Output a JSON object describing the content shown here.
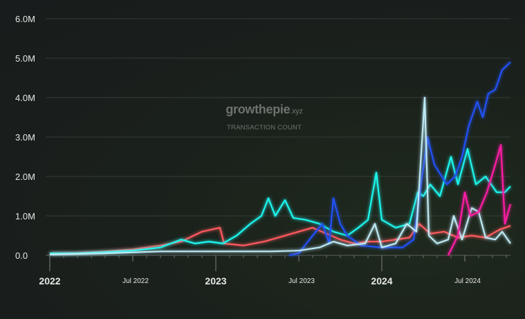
{
  "watermark": {
    "brand": "growthepie",
    "tld": ".xyz",
    "subtitle": "TRANSACTION COUNT"
  },
  "chart_data": {
    "type": "line",
    "title": "TRANSACTION COUNT",
    "x_unit": "months since Jan 2022",
    "xlim": [
      0,
      33.3
    ],
    "ylim": [
      0,
      6000000
    ],
    "yticks": [
      {
        "v": 0,
        "label": "0.0"
      },
      {
        "v": 1000000,
        "label": "1.0M"
      },
      {
        "v": 2000000,
        "label": "2.0M"
      },
      {
        "v": 3000000,
        "label": "3.0M"
      },
      {
        "v": 4000000,
        "label": "4.0M"
      },
      {
        "v": 5000000,
        "label": "5.0M"
      },
      {
        "v": 6000000,
        "label": "6.0M"
      }
    ],
    "xticks": [
      {
        "v": 0,
        "label": "2022",
        "major": true
      },
      {
        "v": 6,
        "label": "Jul 2022",
        "major": false
      },
      {
        "v": 12,
        "label": "2023",
        "major": true
      },
      {
        "v": 18,
        "label": "Jul 2023",
        "major": false
      },
      {
        "v": 24,
        "label": "2024",
        "major": true
      },
      {
        "v": 30,
        "label": "Jul 2024",
        "major": false
      }
    ],
    "grid": true,
    "series": [
      {
        "name": "red",
        "color": "#ff5a5f",
        "points": [
          [
            0,
            0.05
          ],
          [
            2,
            0.06
          ],
          [
            4,
            0.1
          ],
          [
            6,
            0.15
          ],
          [
            8,
            0.25
          ],
          [
            9.5,
            0.35
          ],
          [
            11,
            0.6
          ],
          [
            12.3,
            0.7
          ],
          [
            12.6,
            0.3
          ],
          [
            14,
            0.25
          ],
          [
            15.5,
            0.35
          ],
          [
            16.5,
            0.45
          ],
          [
            17.5,
            0.55
          ],
          [
            19,
            0.7
          ],
          [
            20,
            0.55
          ],
          [
            21,
            0.4
          ],
          [
            22,
            0.3
          ],
          [
            23,
            0.35
          ],
          [
            24,
            0.35
          ],
          [
            25,
            0.4
          ],
          [
            26,
            0.45
          ],
          [
            26.7,
            0.8
          ],
          [
            27.5,
            0.55
          ],
          [
            28.5,
            0.6
          ],
          [
            29.5,
            0.45
          ],
          [
            30.5,
            0.5
          ],
          [
            31.5,
            0.45
          ],
          [
            32.5,
            0.65
          ],
          [
            33.3,
            0.75
          ]
        ]
      },
      {
        "name": "cyan",
        "color": "#1df7ef",
        "points": [
          [
            0,
            0.05
          ],
          [
            2,
            0.05
          ],
          [
            4,
            0.08
          ],
          [
            6,
            0.12
          ],
          [
            8,
            0.2
          ],
          [
            9.5,
            0.4
          ],
          [
            10.5,
            0.3
          ],
          [
            11.5,
            0.35
          ],
          [
            12.5,
            0.3
          ],
          [
            13.5,
            0.5
          ],
          [
            14.5,
            0.8
          ],
          [
            15.3,
            1.0
          ],
          [
            15.8,
            1.45
          ],
          [
            16.3,
            1.0
          ],
          [
            17,
            1.4
          ],
          [
            17.6,
            0.95
          ],
          [
            18.5,
            0.9
          ],
          [
            19.5,
            0.8
          ],
          [
            20.5,
            0.6
          ],
          [
            21.5,
            0.5
          ],
          [
            22.3,
            0.7
          ],
          [
            23,
            0.9
          ],
          [
            23.6,
            2.1
          ],
          [
            24,
            0.9
          ],
          [
            25,
            0.7
          ],
          [
            26,
            0.8
          ],
          [
            26.6,
            1.6
          ],
          [
            27,
            1.5
          ],
          [
            27.5,
            1.8
          ],
          [
            28.2,
            1.5
          ],
          [
            29,
            2.5
          ],
          [
            29.5,
            1.8
          ],
          [
            30.2,
            2.7
          ],
          [
            30.8,
            1.8
          ],
          [
            31.5,
            2.0
          ],
          [
            32.3,
            1.6
          ],
          [
            32.9,
            1.6
          ],
          [
            33.3,
            1.75
          ]
        ]
      },
      {
        "name": "blue",
        "color": "#2151f5",
        "points": [
          [
            17.3,
            0
          ],
          [
            18,
            0.05
          ],
          [
            19,
            0.5
          ],
          [
            19.7,
            0.8
          ],
          [
            20.2,
            0.3
          ],
          [
            20.5,
            1.45
          ],
          [
            21,
            0.8
          ],
          [
            21.5,
            0.5
          ],
          [
            22.5,
            0.25
          ],
          [
            24,
            0.2
          ],
          [
            25.5,
            0.2
          ],
          [
            26.3,
            0.4
          ],
          [
            27.3,
            3.0
          ],
          [
            27.8,
            2.3
          ],
          [
            28.7,
            1.8
          ],
          [
            29.3,
            2.0
          ],
          [
            29.8,
            2.5
          ],
          [
            30.3,
            3.3
          ],
          [
            30.9,
            3.9
          ],
          [
            31.3,
            3.5
          ],
          [
            31.7,
            4.1
          ],
          [
            32.2,
            4.2
          ],
          [
            32.7,
            4.7
          ],
          [
            33.3,
            4.9
          ]
        ]
      },
      {
        "name": "lightblue",
        "color": "#bde9f5",
        "points": [
          [
            0,
            0.02
          ],
          [
            4,
            0.05
          ],
          [
            8,
            0.1
          ],
          [
            12,
            0.1
          ],
          [
            16,
            0.1
          ],
          [
            18,
            0.12
          ],
          [
            19.5,
            0.2
          ],
          [
            20.5,
            0.35
          ],
          [
            21.5,
            0.25
          ],
          [
            22.8,
            0.3
          ],
          [
            23.5,
            0.8
          ],
          [
            24,
            0.2
          ],
          [
            25,
            0.3
          ],
          [
            25.8,
            0.8
          ],
          [
            26.5,
            0.6
          ],
          [
            27.1,
            4.0
          ],
          [
            27.4,
            0.5
          ],
          [
            28,
            0.3
          ],
          [
            28.8,
            0.4
          ],
          [
            29.2,
            1.0
          ],
          [
            29.8,
            0.4
          ],
          [
            30.5,
            1.2
          ],
          [
            31,
            1.1
          ],
          [
            31.5,
            0.45
          ],
          [
            32.2,
            0.4
          ],
          [
            32.7,
            0.6
          ],
          [
            33.3,
            0.3
          ]
        ]
      },
      {
        "name": "pink",
        "color": "#ff1aa5",
        "points": [
          [
            28.8,
            0
          ],
          [
            29.5,
            0.5
          ],
          [
            30,
            1.6
          ],
          [
            30.4,
            1.0
          ],
          [
            31,
            1.1
          ],
          [
            31.6,
            1.6
          ],
          [
            32.2,
            2.3
          ],
          [
            32.6,
            2.8
          ],
          [
            32.9,
            0.8
          ],
          [
            33.3,
            1.3
          ]
        ]
      }
    ]
  }
}
